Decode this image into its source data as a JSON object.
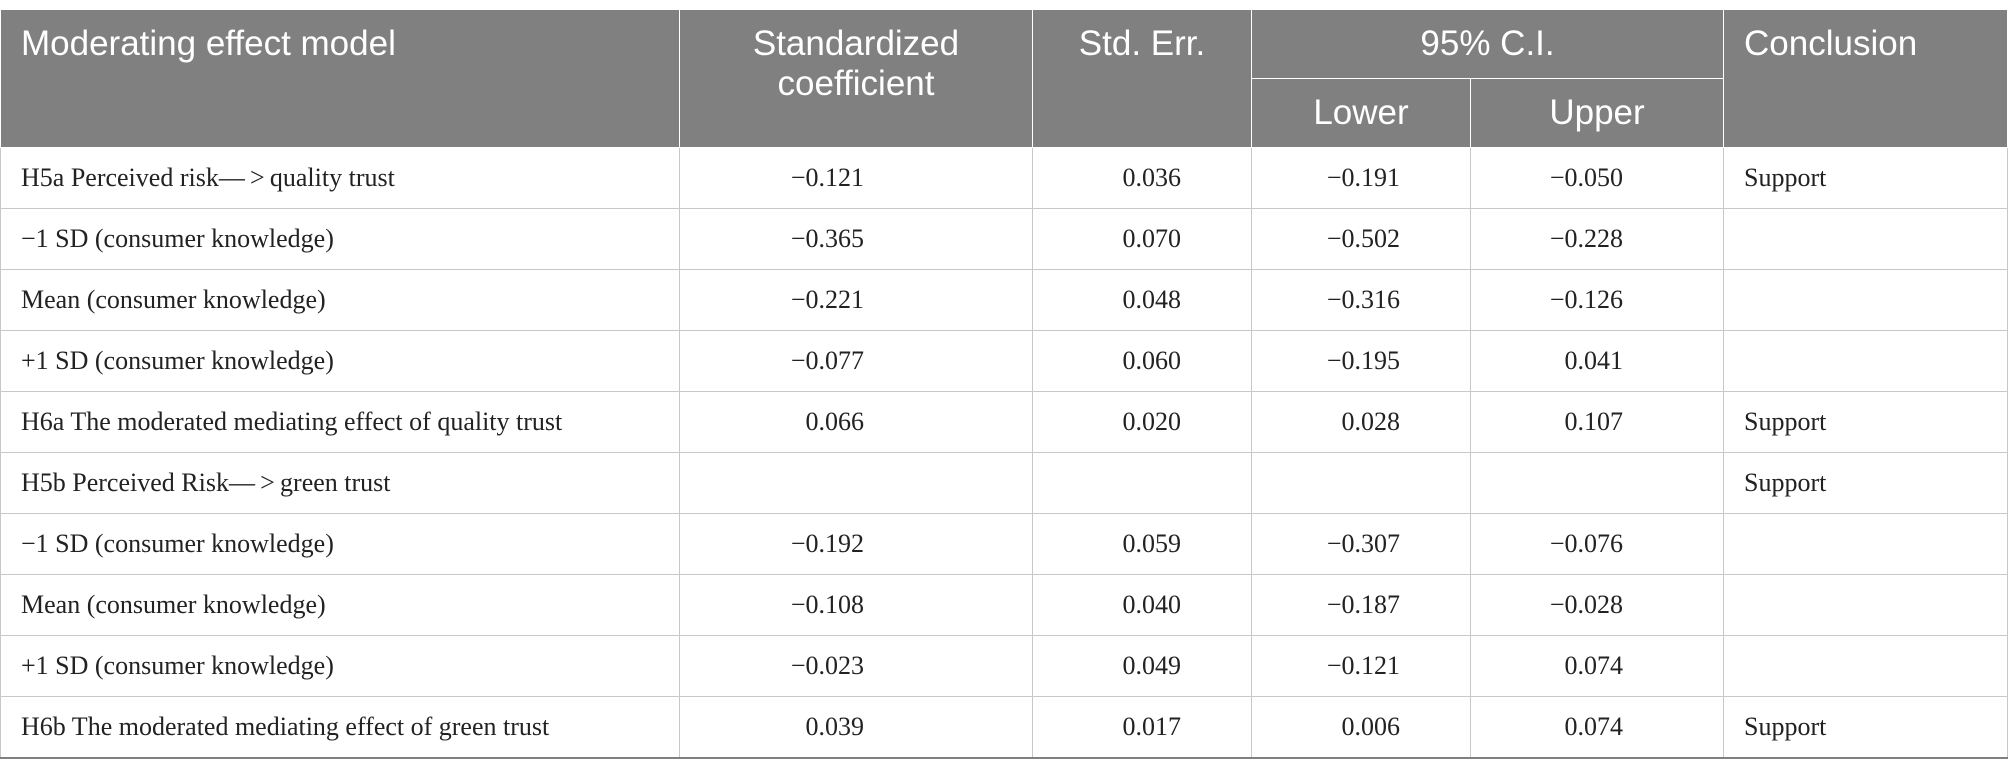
{
  "header": {
    "model": "Moderating effect model",
    "coef_line1": "Standardized",
    "coef_line2": "coefficient",
    "stderr": "Std. Err.",
    "ci": "95% C.I.",
    "lower": "Lower",
    "upper": "Upper",
    "conclusion": "Conclusion"
  },
  "rows": [
    {
      "label": "H5a Perceived risk— > quality trust",
      "coef": "−0.121",
      "se": "0.036",
      "lower": "−0.191",
      "upper": "−0.050",
      "conclusion": "Support"
    },
    {
      "label": "−1 SD (consumer knowledge)",
      "coef": "−0.365",
      "se": "0.070",
      "lower": "−0.502",
      "upper": "−0.228",
      "conclusion": ""
    },
    {
      "label": "Mean (consumer knowledge)",
      "coef": "−0.221",
      "se": "0.048",
      "lower": "−0.316",
      "upper": "−0.126",
      "conclusion": ""
    },
    {
      "label": "+1 SD (consumer knowledge)",
      "coef": "−0.077",
      "se": "0.060",
      "lower": "−0.195",
      "upper": "0.041",
      "conclusion": ""
    },
    {
      "label": "H6a The moderated mediating effect of quality trust",
      "coef": "0.066",
      "se": "0.020",
      "lower": "0.028",
      "upper": "0.107",
      "conclusion": "Support"
    },
    {
      "label": "H5b Perceived Risk— > green trust",
      "coef": "",
      "se": "",
      "lower": "",
      "upper": "",
      "conclusion": "Support"
    },
    {
      "label": "−1 SD (consumer knowledge)",
      "coef": "−0.192",
      "se": "0.059",
      "lower": "−0.307",
      "upper": "−0.076",
      "conclusion": ""
    },
    {
      "label": "Mean (consumer knowledge)",
      "coef": "−0.108",
      "se": "0.040",
      "lower": "−0.187",
      "upper": "−0.028",
      "conclusion": ""
    },
    {
      "label": "+1 SD (consumer knowledge)",
      "coef": "−0.023",
      "se": "0.049",
      "lower": "−0.121",
      "upper": "0.074",
      "conclusion": ""
    },
    {
      "label": "H6b The moderated mediating effect of green trust",
      "coef": "0.039",
      "se": "0.017",
      "lower": "0.006",
      "upper": "0.074",
      "conclusion": "Support"
    }
  ]
}
